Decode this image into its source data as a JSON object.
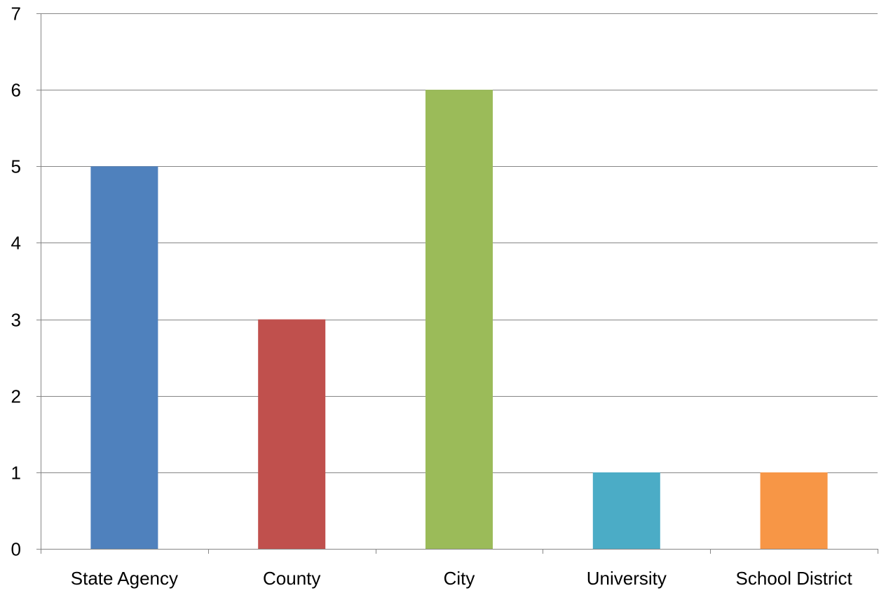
{
  "chart_data": {
    "type": "bar",
    "categories": [
      "State Agency",
      "County",
      "City",
      "University",
      "School District"
    ],
    "values": [
      5,
      3,
      6,
      1,
      1
    ],
    "colors": [
      "#4F81BD",
      "#C0504D",
      "#9BBB59",
      "#4BACC6",
      "#F79646"
    ],
    "ylim": [
      0,
      7
    ],
    "yticks": [
      0,
      1,
      2,
      3,
      4,
      5,
      6,
      7
    ],
    "grid": true,
    "legend": "none",
    "title": "",
    "xlabel": "",
    "ylabel": ""
  }
}
